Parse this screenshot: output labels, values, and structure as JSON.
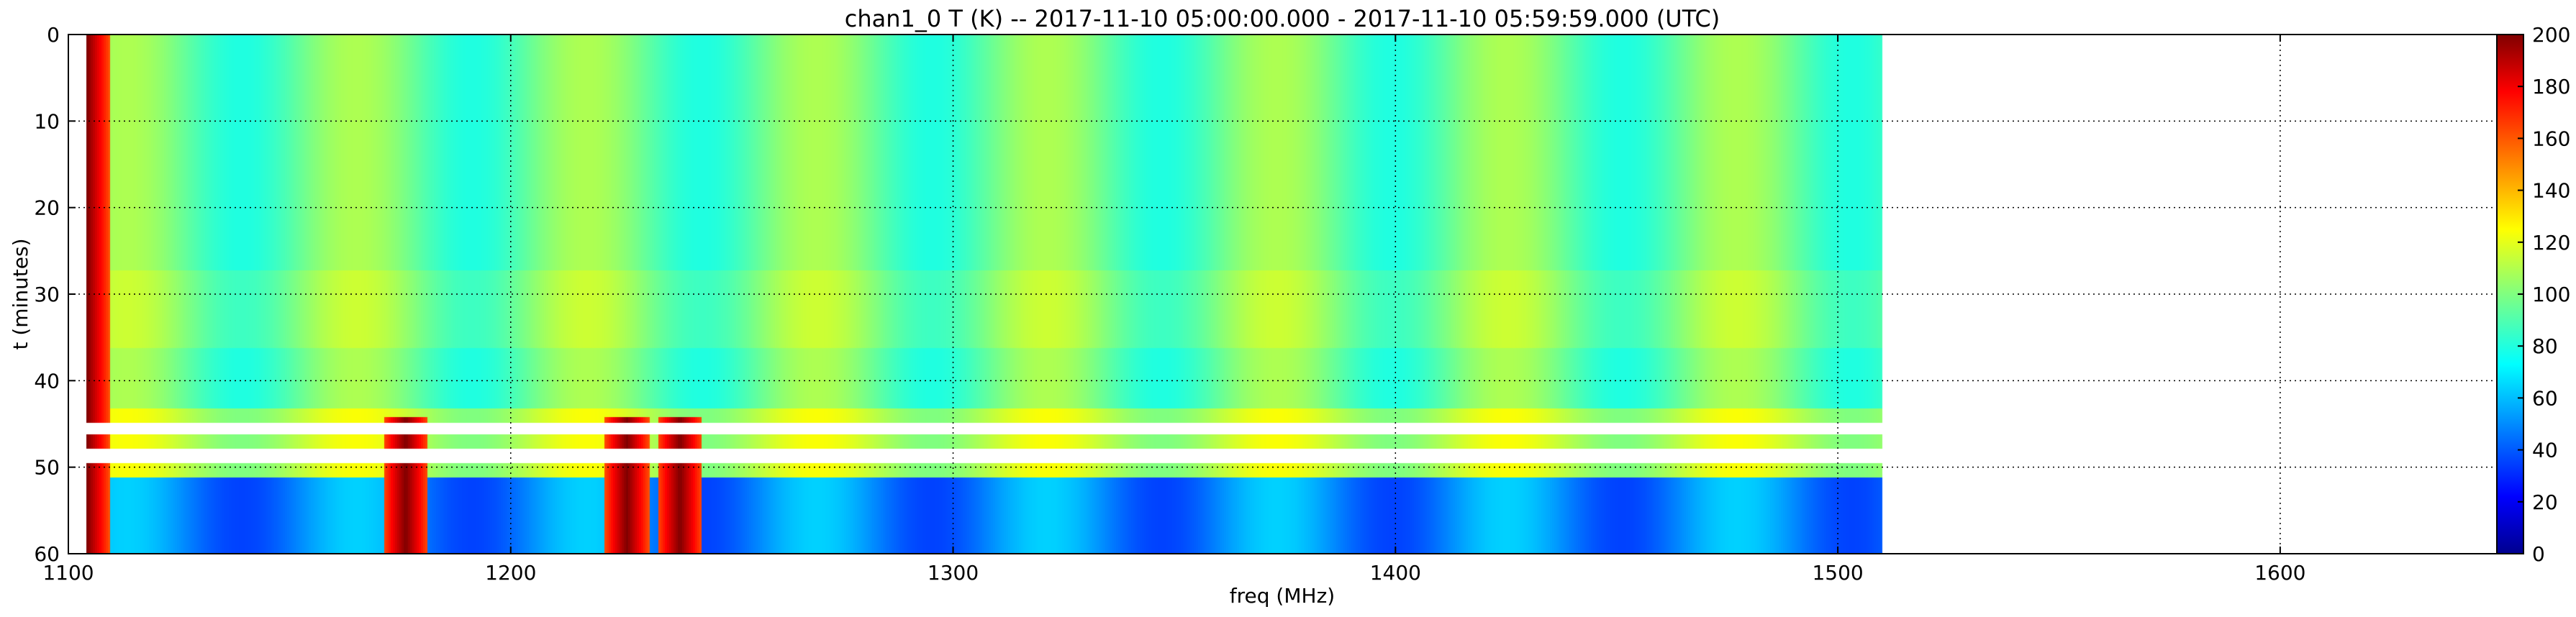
{
  "chart_data": {
    "type": "heatmap",
    "title": "chan1_0 T (K) -- 2017-11-10 05:00:00.000 - 2017-11-10 05:59:59.000 (UTC)",
    "xlabel": "freq (MHz)",
    "ylabel": "t (minutes)",
    "xlim": [
      1100,
      1655
    ],
    "ylim": [
      0,
      60
    ],
    "y_inverted": true,
    "x_ticks": [
      1100,
      1200,
      1300,
      1400,
      1500,
      1600
    ],
    "y_ticks": [
      0,
      10,
      20,
      30,
      40,
      50,
      60
    ],
    "grid": true,
    "data_extent_freq": [
      1104,
      1510
    ],
    "colorbar": {
      "label": "",
      "range": [
        0,
        200
      ],
      "ticks": [
        0,
        20,
        40,
        60,
        80,
        100,
        120,
        140,
        160,
        180,
        200
      ],
      "colormap": "jet"
    },
    "bands": [
      {
        "t_start": 0,
        "t_end": 43,
        "description": "steady emission, ~80-110 K with periodic frequency ripple"
      },
      {
        "t_start": 43,
        "t_end": 51,
        "description": "interleaved flagged (white) rows and brighter emission"
      },
      {
        "t_start": 51,
        "t_end": 60,
        "description": "low temperature, ~30-70 K, with RFI hot spots"
      }
    ],
    "hot_spots_freq": [
      1104,
      1176,
      1226,
      1238
    ],
    "hot_spot_max": 200
  },
  "colors": {
    "background": "#ffffff",
    "axes": "#000000",
    "grid": "#000000",
    "nodata": "#ffffff"
  }
}
